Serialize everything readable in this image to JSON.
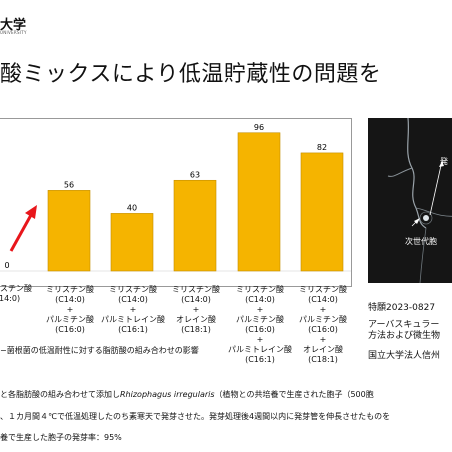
{
  "header": {
    "logo_text": "大学",
    "logo_sub": "UNIVERSITY"
  },
  "title": "酸ミックスにより低温貯蔵性の問題を",
  "chart_data": {
    "type": "bar",
    "categories": [
      [
        "(14:0)"
      ],
      [
        "ミリスチン酸",
        "(C14:0)",
        "+",
        "パルミチン酸",
        "(C16:0)"
      ],
      [
        "ミリスチン酸",
        "(C14:0)",
        "+",
        "パルミトレイン酸",
        "(C16:1)"
      ],
      [
        "ミリスチン酸",
        "(C14:0)",
        "+",
        "オレイン酸",
        "(C18:1)"
      ],
      [
        "ミリスチン酸",
        "(C14:0)",
        "+",
        "パルミチン酸",
        "(C16:0)",
        "+",
        "パルミトレイン酸",
        "(C16:1)"
      ],
      [
        "ミリスチン酸",
        "(C14:0)",
        "+",
        "パルミチン酸",
        "(C16:0)",
        "+",
        "オレイン酸",
        "(C18:1)"
      ]
    ],
    "values": [
      0,
      56,
      40,
      63,
      96,
      82
    ],
    "first_category_top": "ミリスチン酸",
    "ylim": [
      0,
      100
    ],
    "colors": {
      "bar": "#f5b400",
      "bar_edge": "#c48e00",
      "arrow": "#e8161b"
    }
  },
  "photo": {
    "label_top": "発",
    "label_bottom": "次世代胞"
  },
  "right_text": {
    "patent": "特願2023-0827",
    "applicant_line1": "アーバスキュラー",
    "applicant_line2": "方法および微生物",
    "owner": "国立大学法人信州"
  },
  "caption": "−菌根菌の低温耐性に対する脂肪酸の組み合わせの影響",
  "footnotes": {
    "line1_a": "と各脂肪酸の組み合わせて添加し",
    "line1_italic": "Rhizophagus irregularis",
    "line1_b": "（植物との共培養で生産された胞子（500胞",
    "line2": "、１カ月間４℃で低温処理したのち素寒天で発芽させた。発芽処理後4週間以内に発芽管を伸長させたものを",
    "line3": "養で生産した胞子の発芽率：95%"
  }
}
